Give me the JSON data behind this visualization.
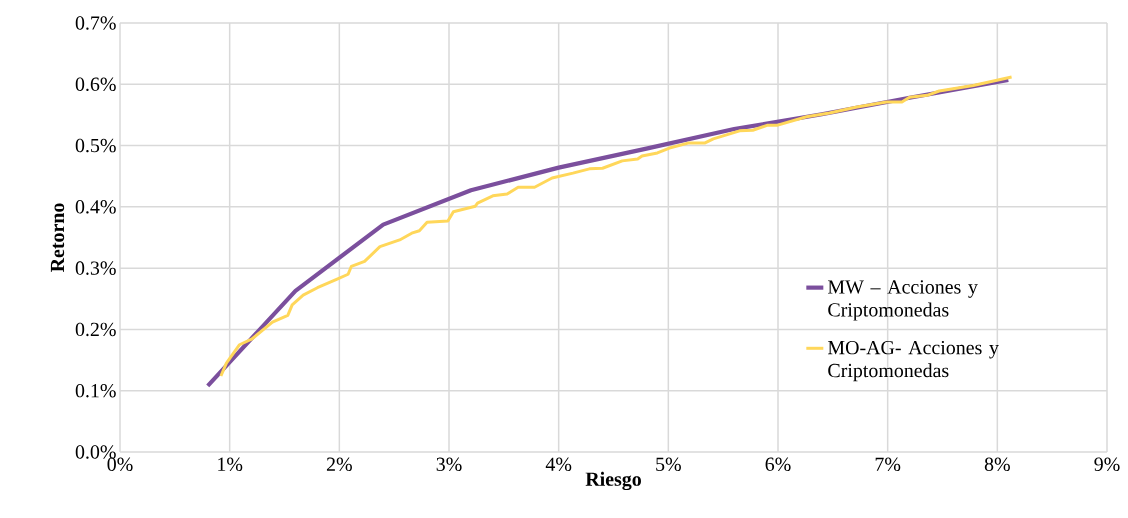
{
  "chart_data": {
    "type": "line",
    "xlabel": "Riesgo",
    "ylabel": "Retorno",
    "xlim": [
      0,
      9
    ],
    "ylim": [
      0,
      0.7
    ],
    "xticks": [
      {
        "value": 0,
        "label": "0%"
      },
      {
        "value": 1,
        "label": "1%"
      },
      {
        "value": 2,
        "label": "2%"
      },
      {
        "value": 3,
        "label": "3%"
      },
      {
        "value": 4,
        "label": "4%"
      },
      {
        "value": 5,
        "label": "5%"
      },
      {
        "value": 6,
        "label": "6%"
      },
      {
        "value": 7,
        "label": "7%"
      },
      {
        "value": 8,
        "label": "8%"
      },
      {
        "value": 9,
        "label": "9%"
      }
    ],
    "yticks": [
      {
        "value": 0,
        "label": "0.0%"
      },
      {
        "value": 0.1,
        "label": "0.1%"
      },
      {
        "value": 0.2,
        "label": "0.2%"
      },
      {
        "value": 0.3,
        "label": "0.3%"
      },
      {
        "value": 0.4,
        "label": "0.4%"
      },
      {
        "value": 0.5,
        "label": "0.5%"
      },
      {
        "value": 0.6,
        "label": "0.6%"
      },
      {
        "value": 0.7,
        "label": "0.7%"
      }
    ],
    "grid": true,
    "legend": "right",
    "marker": "none",
    "line_style": "solid",
    "series": [
      {
        "name": "MW – Acciones y Criptomonedas",
        "color": "#7b4f9d",
        "x": [
          0.8,
          1.6,
          2.4,
          3.2,
          4.0,
          4.8,
          5.6,
          6.4,
          7.2,
          8.1
        ],
        "values": [
          0.108,
          0.263,
          0.371,
          0.427,
          0.464,
          0.495,
          0.527,
          0.551,
          0.578,
          0.607
        ]
      },
      {
        "name": "MO-AG- Acciones y Criptomonedas",
        "color": "#ffd75a",
        "x": [
          0.92,
          0.97,
          1.09,
          1.2,
          1.39,
          1.53,
          1.57,
          1.67,
          1.8,
          1.98,
          2.08,
          2.11,
          2.23,
          2.37,
          2.55,
          2.66,
          2.73,
          2.8,
          2.99,
          3.04,
          3.24,
          3.26,
          3.4,
          3.53,
          3.63,
          3.78,
          3.94,
          4.13,
          4.28,
          4.4,
          4.58,
          4.72,
          4.76,
          4.9,
          5.01,
          5.18,
          5.33,
          5.41,
          5.65,
          5.77,
          5.9,
          5.99,
          6.26,
          6.47,
          6.72,
          6.99,
          7.13,
          7.2,
          7.36,
          7.47,
          7.78,
          8.13
        ],
        "values": [
          0.124,
          0.145,
          0.175,
          0.184,
          0.212,
          0.223,
          0.24,
          0.256,
          0.268,
          0.282,
          0.29,
          0.303,
          0.311,
          0.335,
          0.346,
          0.357,
          0.361,
          0.375,
          0.377,
          0.392,
          0.401,
          0.406,
          0.418,
          0.421,
          0.432,
          0.432,
          0.447,
          0.455,
          0.462,
          0.463,
          0.475,
          0.478,
          0.483,
          0.488,
          0.496,
          0.504,
          0.504,
          0.511,
          0.524,
          0.525,
          0.533,
          0.533,
          0.547,
          0.553,
          0.563,
          0.571,
          0.571,
          0.579,
          0.582,
          0.589,
          0.598,
          0.612
        ]
      }
    ]
  }
}
